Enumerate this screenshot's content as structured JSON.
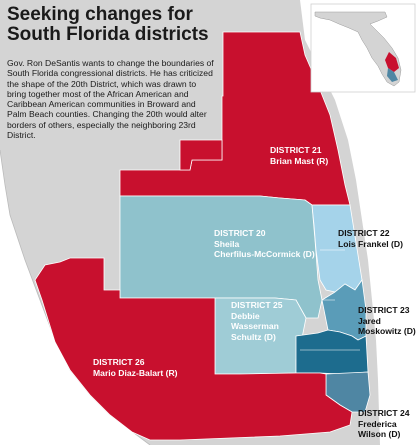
{
  "title": "Seeking changes for South Florida districts",
  "description": "Gov. Ron DeSantis wants to change the boundaries of South Florida congressional districts. He has criticized the shape of the 20th District, which was drawn to bring together most of the African American and Caribbean American communities in Broward and Palm Beach counties. Changing the 20th would alter borders of others, especially the neighboring 23rd District.",
  "colors": {
    "land": "#d4d4d4",
    "water": "#ffffff",
    "red_district": "#c8102e",
    "district_20": "#8fc2cc",
    "district_25": "#9fccd6",
    "district_22": "#a5d3ea",
    "district_23": "#5a9cb8",
    "district_23_dark": "#1d6c8e",
    "district_24": "#4f86a3"
  },
  "districts": [
    {
      "id": "21",
      "number_label": "DISTRICT 21",
      "rep": "Brian Mast (R)"
    },
    {
      "id": "20",
      "number_label": "DISTRICT 20",
      "rep_lines": [
        "Sheila",
        "Cherfilus-McCormick (D)"
      ]
    },
    {
      "id": "22",
      "number_label": "DISTRICT 22",
      "rep": "Lois Frankel (D)"
    },
    {
      "id": "25",
      "number_label": "DISTRICT 25",
      "rep_lines": [
        "Debbie",
        "Wasserman",
        "Schultz (D)"
      ]
    },
    {
      "id": "23",
      "number_label": "DISTRICT 23",
      "rep_lines": [
        "Jared",
        "Moskowitz (D)"
      ]
    },
    {
      "id": "26",
      "number_label": "DISTRICT 26",
      "rep": "Mario Diaz-Balart (R)"
    },
    {
      "id": "24",
      "number_label": "DISTRICT 24",
      "rep_lines": [
        "Frederica",
        "Wilson (D)"
      ]
    }
  ],
  "inset_map": {
    "subject": "Florida locator map",
    "icon": "florida-inset"
  }
}
